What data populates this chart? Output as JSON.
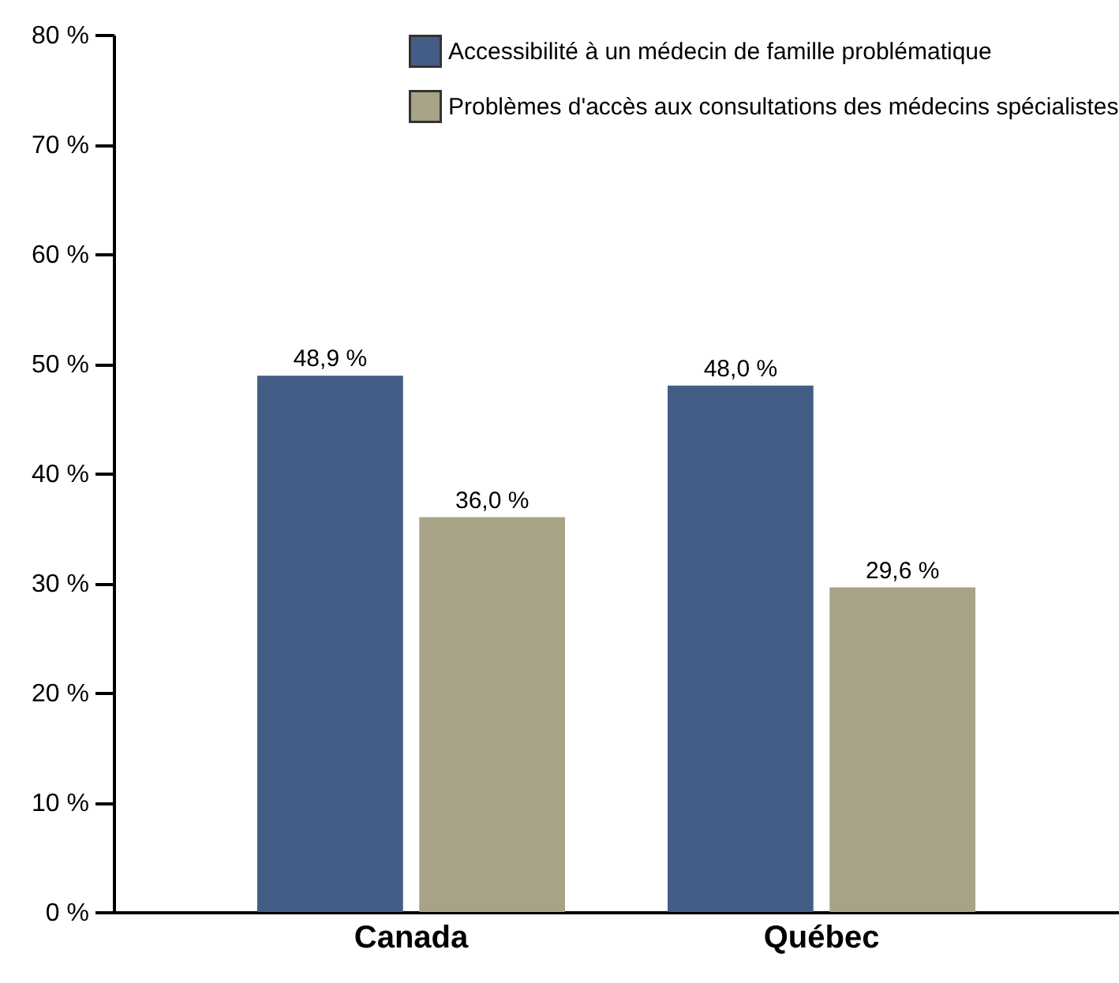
{
  "chart_data": {
    "type": "bar",
    "categories": [
      "Canada",
      "Québec"
    ],
    "series": [
      {
        "name": "Accessibilité à un médecin de famille problématique",
        "color": "#445d87",
        "values": [
          48.9,
          48.0
        ],
        "value_labels": [
          "48,9 %",
          "48,0 %"
        ]
      },
      {
        "name": "Problèmes d'accès aux consultations des médecins spécialistes",
        "color": "#a8a387",
        "values": [
          36.0,
          29.6
        ],
        "value_labels": [
          "36,0 %",
          "29,6 %"
        ]
      }
    ],
    "ylim": [
      0,
      80
    ],
    "yticks": [
      {
        "value": 0,
        "label": "0 %"
      },
      {
        "value": 10,
        "label": "10 %"
      },
      {
        "value": 20,
        "label": "20 %"
      },
      {
        "value": 30,
        "label": "30 %"
      },
      {
        "value": 40,
        "label": "40 %"
      },
      {
        "value": 50,
        "label": "50 %"
      },
      {
        "value": 60,
        "label": "60 %"
      },
      {
        "value": 70,
        "label": "70 %"
      },
      {
        "value": 80,
        "label": "80 %"
      }
    ],
    "grid": false,
    "legend": "top right"
  }
}
